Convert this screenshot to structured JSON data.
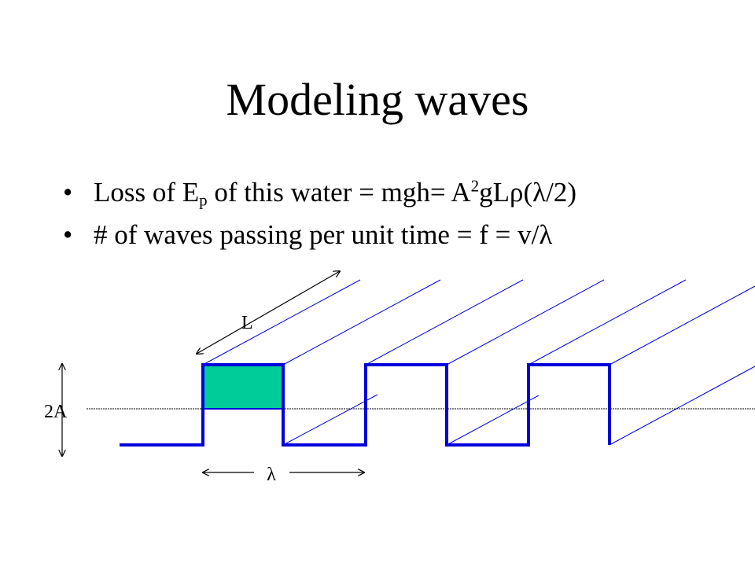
{
  "slide": {
    "title": "Modeling waves",
    "bullets": [
      {
        "marker": "•",
        "parts": [
          "Loss of E",
          "p",
          " of this water = mgh= A",
          "2",
          "gLρ(λ/2)"
        ]
      },
      {
        "marker": "•",
        "parts": [
          "# of waves passing per unit time = f = v/λ"
        ]
      }
    ]
  },
  "diagram": {
    "labels": {
      "length": "L",
      "amplitude": "2A",
      "wavelength": "λ"
    },
    "colors": {
      "wave": "#0000dd",
      "fill": "#00cc99",
      "axis": "#000000"
    }
  }
}
